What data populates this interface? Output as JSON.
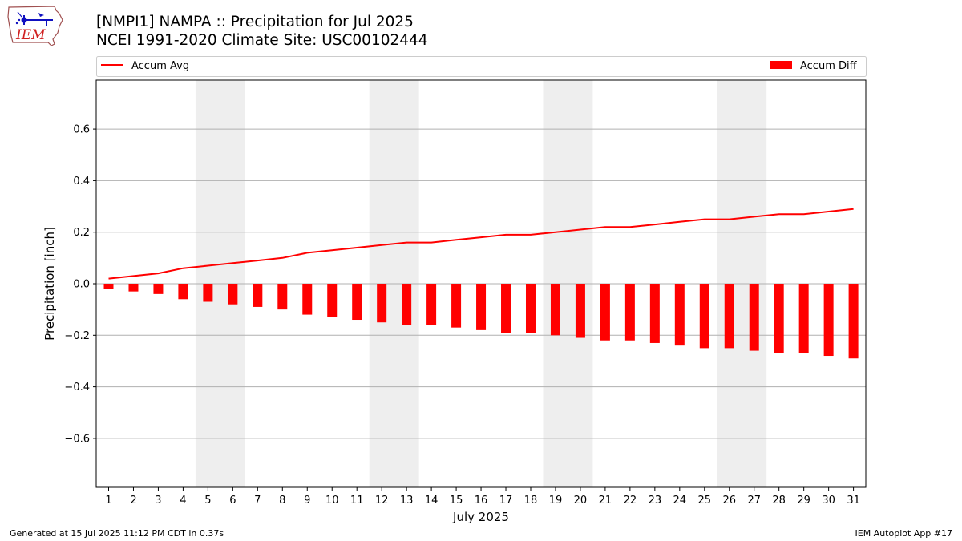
{
  "header": {
    "title_line1": "[NMPI1] NAMPA :: Precipitation for Jul 2025",
    "title_line2": "NCEI 1991-2020 Climate Site: USC00102444"
  },
  "logo": {
    "text": "IEM",
    "icon": "iowa-environmental-mesonet-logo"
  },
  "footer": {
    "left": "Generated at 15 Jul 2025 11:12 PM CDT in 0.37s",
    "right": "IEM Autoplot App #17"
  },
  "chart_data": {
    "type": "bar",
    "xlabel": "July 2025",
    "ylabel": "Precipitation [inch]",
    "ylim": [
      -0.79,
      0.79
    ],
    "yticks": [
      -0.6,
      -0.4,
      -0.2,
      0.0,
      0.2,
      0.4,
      0.6
    ],
    "ytick_labels": [
      "−0.6",
      "−0.4",
      "−0.2",
      "0.0",
      "0.2",
      "0.4",
      "0.6"
    ],
    "grid": "horizontal",
    "legend": [
      {
        "name": "Accum Avg",
        "kind": "line",
        "placement": "top-left"
      },
      {
        "name": "Accum Diff",
        "kind": "bar",
        "placement": "top-right"
      }
    ],
    "weekend_shading": [
      [
        5,
        6
      ],
      [
        12,
        13
      ],
      [
        19,
        20
      ],
      [
        26,
        27
      ]
    ],
    "shading_color": "#eeeeee",
    "categories": [
      1,
      2,
      3,
      4,
      5,
      6,
      7,
      8,
      9,
      10,
      11,
      12,
      13,
      14,
      15,
      16,
      17,
      18,
      19,
      20,
      21,
      22,
      23,
      24,
      25,
      26,
      27,
      28,
      29,
      30,
      31
    ],
    "series": [
      {
        "name": "Accum Avg",
        "kind": "line",
        "color": "#ff0000",
        "values": [
          0.02,
          0.03,
          0.04,
          0.06,
          0.07,
          0.08,
          0.09,
          0.1,
          0.12,
          0.13,
          0.14,
          0.15,
          0.16,
          0.16,
          0.17,
          0.18,
          0.19,
          0.19,
          0.2,
          0.21,
          0.22,
          0.22,
          0.23,
          0.24,
          0.25,
          0.25,
          0.26,
          0.27,
          0.27,
          0.28,
          0.29
        ]
      },
      {
        "name": "Accum Diff",
        "kind": "bar",
        "color": "#ff0000",
        "values": [
          -0.02,
          -0.03,
          -0.04,
          -0.06,
          -0.07,
          -0.08,
          -0.09,
          -0.1,
          -0.12,
          -0.13,
          -0.14,
          -0.15,
          -0.16,
          -0.16,
          -0.17,
          -0.18,
          -0.19,
          -0.19,
          -0.2,
          -0.21,
          -0.22,
          -0.22,
          -0.23,
          -0.24,
          -0.25,
          -0.25,
          -0.26,
          -0.27,
          -0.27,
          -0.28,
          -0.29
        ]
      }
    ]
  }
}
